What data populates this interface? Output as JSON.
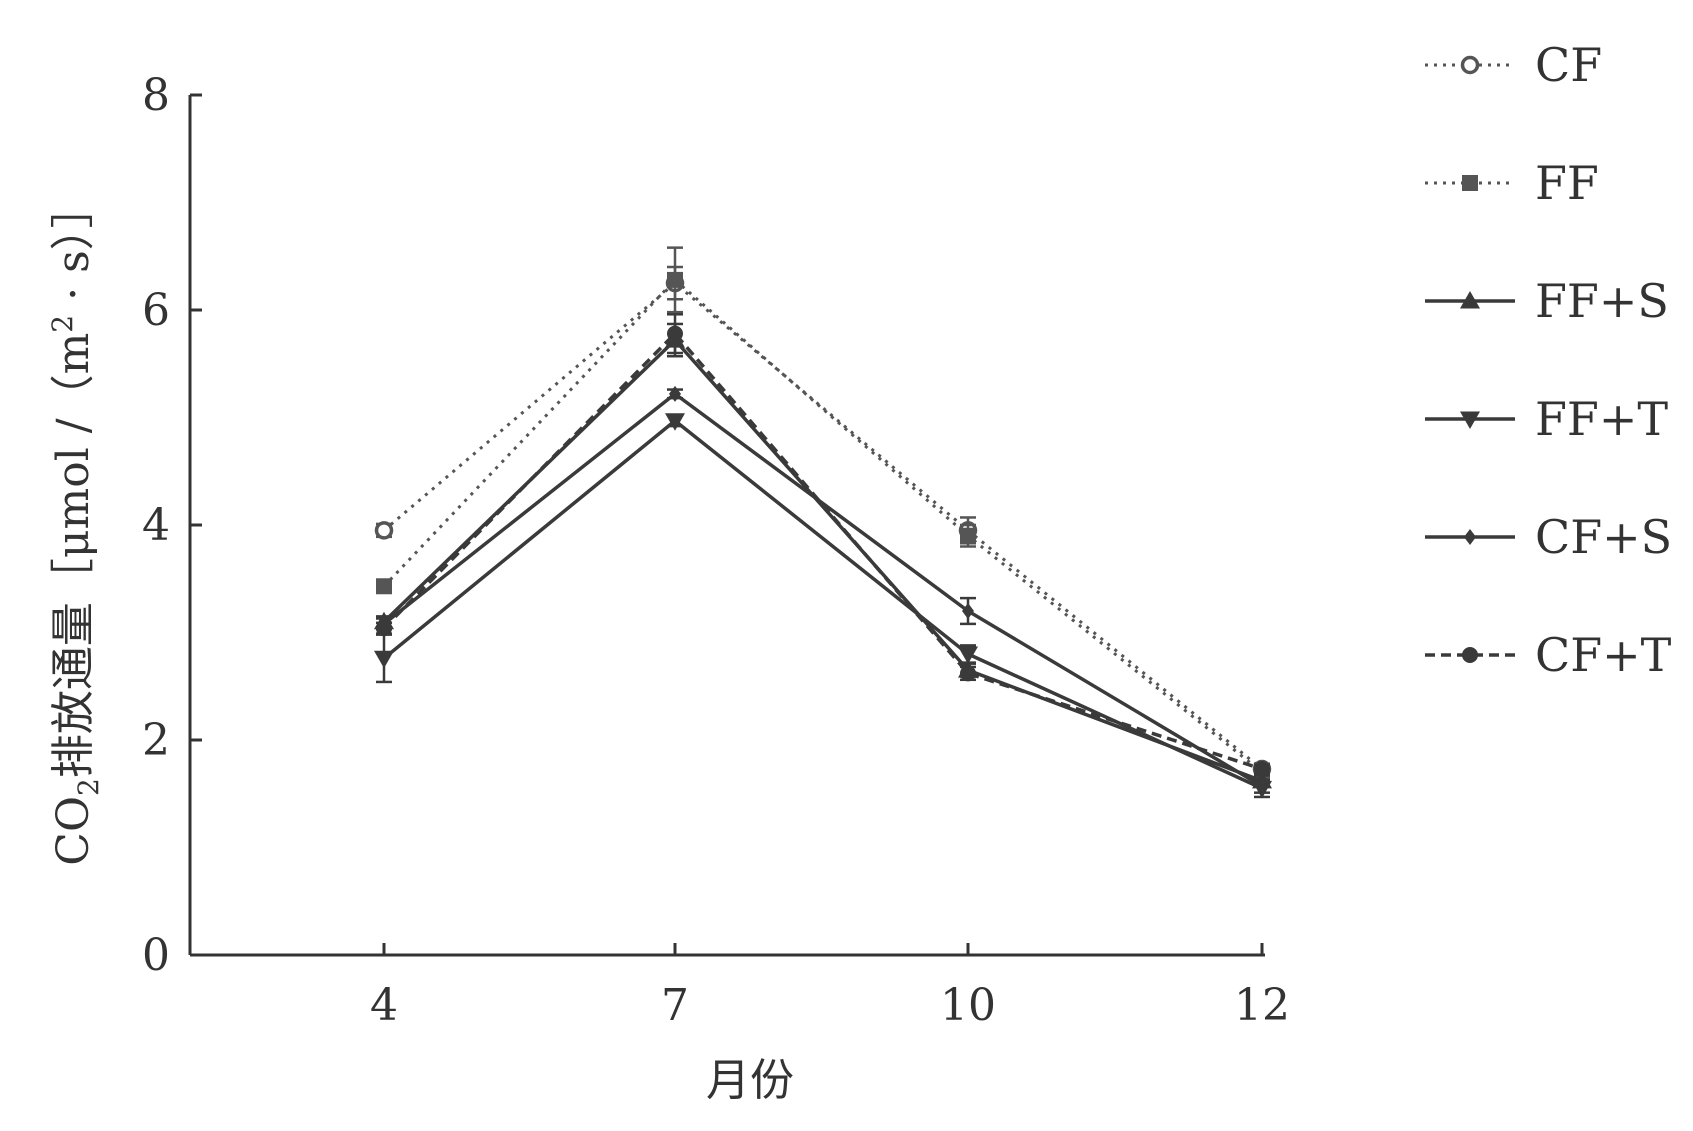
{
  "chart_data": {
    "type": "line",
    "title": "",
    "xlabel": "月份",
    "ylabel": {
      "main": "CO",
      "subscript": "2",
      "rest": "排放通量［μmol /（m",
      "superscript": "2",
      "tail": " · s）］"
    },
    "x": [
      4,
      7,
      10,
      12
    ],
    "x_tick_labels": [
      "4",
      "7",
      "10",
      "12"
    ],
    "ylim": [
      0,
      8
    ],
    "y_ticks": [
      0,
      2,
      4,
      6,
      8
    ],
    "y_tick_labels": [
      "0",
      "2",
      "4",
      "6",
      "8"
    ],
    "grid": false,
    "legend_position": "right",
    "series": [
      {
        "name": "CF",
        "values": [
          3.95,
          6.25,
          3.95,
          1.73
        ],
        "errors": [
          0.06,
          0.15,
          0.12,
          0.05
        ],
        "marker": "open-circle",
        "line": "dotted",
        "color": "#555555"
      },
      {
        "name": "FF",
        "values": [
          3.43,
          6.28,
          3.9,
          1.7
        ],
        "errors": [
          0.05,
          0.3,
          0.1,
          0.04
        ],
        "marker": "square",
        "line": "dotted",
        "color": "#555555"
      },
      {
        "name": "FF+S",
        "values": [
          3.1,
          5.72,
          2.65,
          1.62
        ],
        "errors": [
          0.05,
          0.15,
          0.06,
          0.05
        ],
        "marker": "triangle-up",
        "line": "solid",
        "color": "#3a3a3a"
      },
      {
        "name": "FF+T",
        "values": [
          2.76,
          4.97,
          2.8,
          1.55
        ],
        "errors": [
          0.22,
          0.05,
          0.08,
          0.08
        ],
        "marker": "triangle-down",
        "line": "solid",
        "color": "#3a3a3a"
      },
      {
        "name": "CF+S",
        "values": [
          3.08,
          5.22,
          3.2,
          1.57
        ],
        "errors": [
          0.05,
          0.04,
          0.12,
          0.06
        ],
        "marker": "diamond",
        "line": "solid",
        "color": "#3a3a3a"
      },
      {
        "name": "CF+T",
        "values": [
          3.04,
          5.78,
          2.62,
          1.73
        ],
        "errors": [
          0.05,
          0.18,
          0.06,
          0.04
        ],
        "marker": "circle",
        "line": "dashed",
        "color": "#3a3a3a"
      }
    ]
  }
}
